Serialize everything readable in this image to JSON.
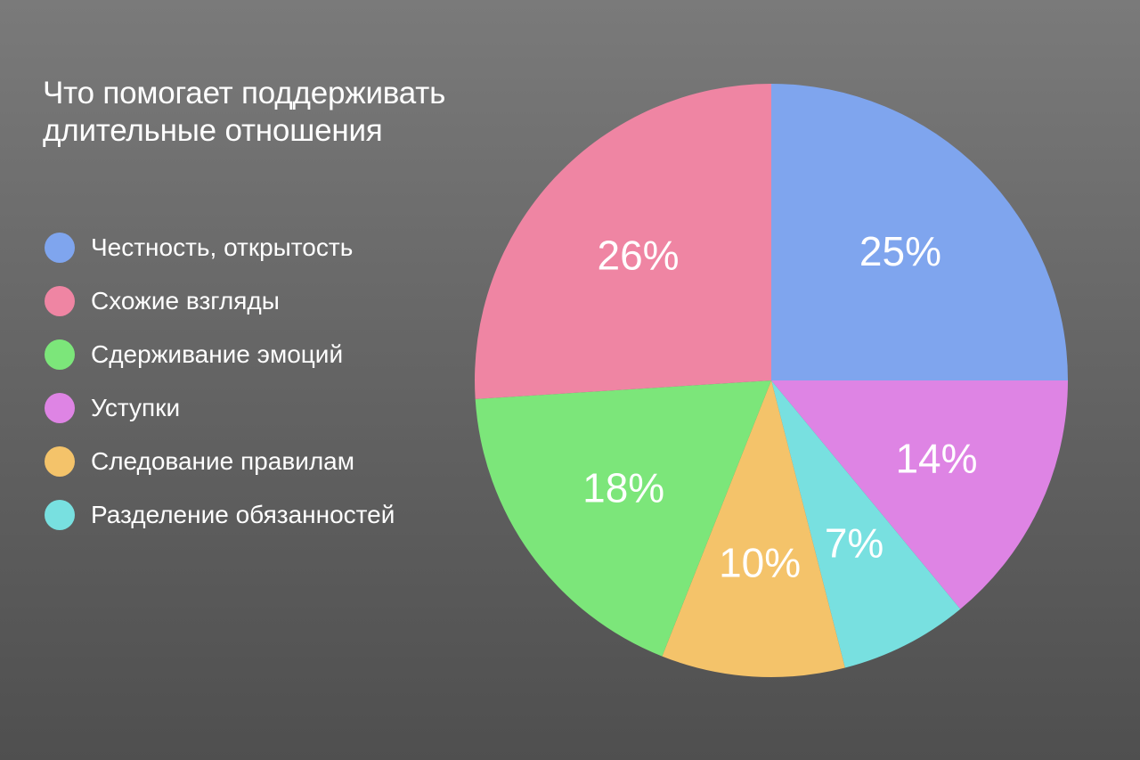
{
  "chart_data": {
    "type": "pie",
    "title_lines": [
      "Что помогает поддерживать",
      "длительные отношения"
    ],
    "legend_placement": "left",
    "start_angle_deg": 0,
    "direction": "clockwise",
    "slices": [
      {
        "label": "Честность, открытость",
        "value": 25,
        "display": "25%",
        "color": "#7fa5ee"
      },
      {
        "label": "Уступки",
        "value": 14,
        "display": "14%",
        "color": "#de84e4"
      },
      {
        "label": "Разделение обязанностей",
        "value": 7,
        "display": "7%",
        "color": "#78e0e0"
      },
      {
        "label": "Следование правилам",
        "value": 10,
        "display": "10%",
        "color": "#f4c36a"
      },
      {
        "label": "Сдерживание эмоций",
        "value": 18,
        "display": "18%",
        "color": "#7ce67a"
      },
      {
        "label": "Схожие взгляды",
        "value": 26,
        "display": "26%",
        "color": "#ef85a3"
      }
    ],
    "legend": [
      {
        "label": "Честность, открытость",
        "color": "#7fa5ee"
      },
      {
        "label": "Схожие взгляды",
        "color": "#ef85a3"
      },
      {
        "label": "Сдерживание эмоций",
        "color": "#7ce67a"
      },
      {
        "label": "Уступки",
        "color": "#de84e4"
      },
      {
        "label": "Следование правилам",
        "color": "#f4c36a"
      },
      {
        "label": "Разделение обязанностей",
        "color": "#78e0e0"
      }
    ]
  }
}
